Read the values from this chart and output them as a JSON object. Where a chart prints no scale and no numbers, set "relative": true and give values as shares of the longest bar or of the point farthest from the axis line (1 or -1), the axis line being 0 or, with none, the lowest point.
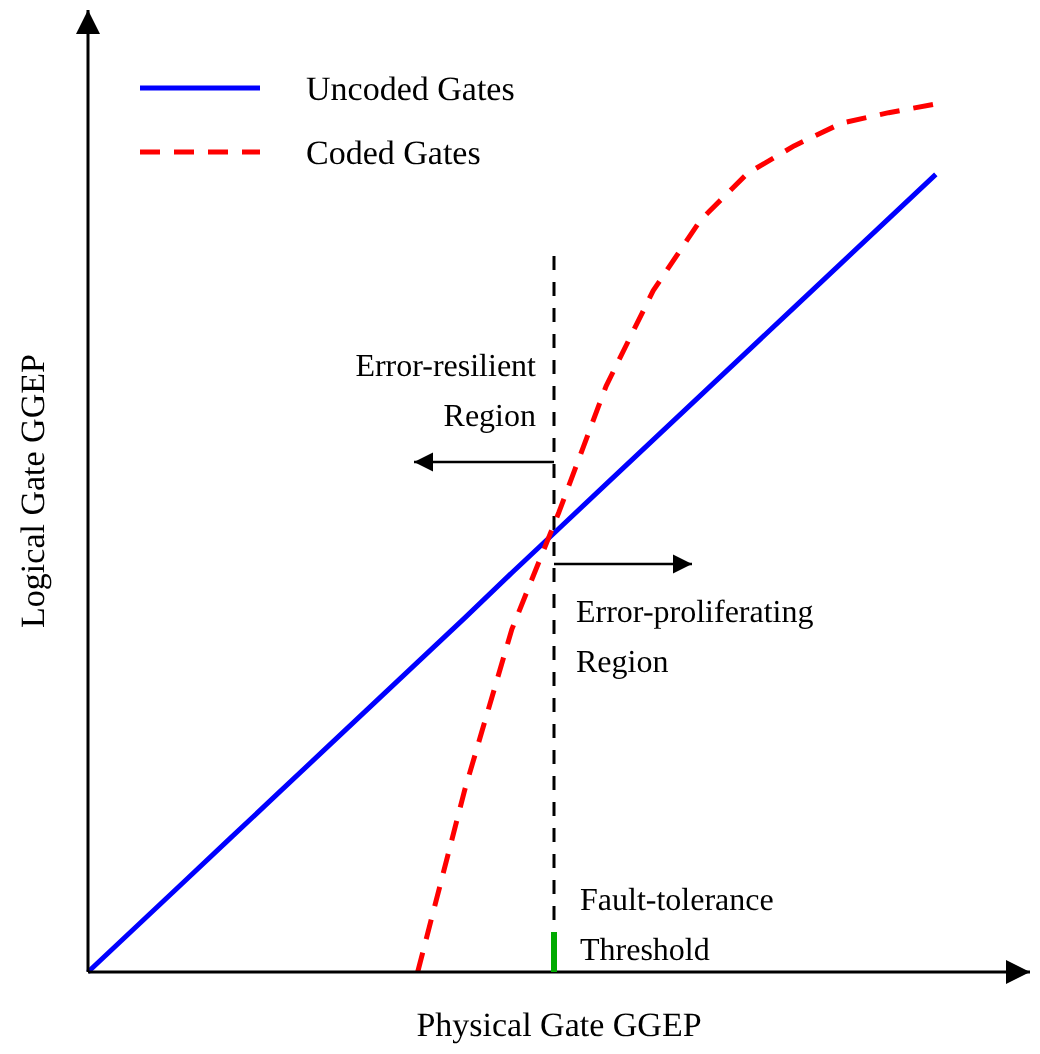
{
  "chart_data": {
    "type": "line",
    "relative": true,
    "categories": [
      null,
      null,
      null,
      null,
      null,
      null,
      null,
      null,
      null,
      null,
      null,
      null,
      null,
      null,
      null,
      null,
      null,
      null,
      null,
      null,
      null
    ],
    "xlabel": "Physical Gate GGEP",
    "ylabel": "Logical Gate GGEP",
    "legend": "top left",
    "series": [
      {
        "name": "Uncoded Gates",
        "color": "#0000ff",
        "line_style": "solid",
        "values": [
          0,
          0.051,
          0.102,
          0.153,
          0.204,
          0.255,
          0.306,
          0.357,
          0.408,
          0.46,
          0.511,
          0.562,
          0.613,
          0.664,
          0.715,
          0.766,
          0.817,
          0.868,
          0.919,
          null,
          null
        ]
      },
      {
        "name": "Coded Gates",
        "color": "#ff0000",
        "line_style": "dashed",
        "values": [
          null,
          null,
          null,
          null,
          null,
          null,
          null,
          0,
          0.21,
          0.395,
          0.53,
          0.675,
          0.785,
          0.866,
          0.92,
          0.952,
          0.978,
          0.99,
          1,
          null,
          null
        ]
      }
    ],
    "annotations": [
      "Error-resilient Region",
      "Error-proliferating Region",
      "Fault-tolerance Threshold"
    ]
  }
}
